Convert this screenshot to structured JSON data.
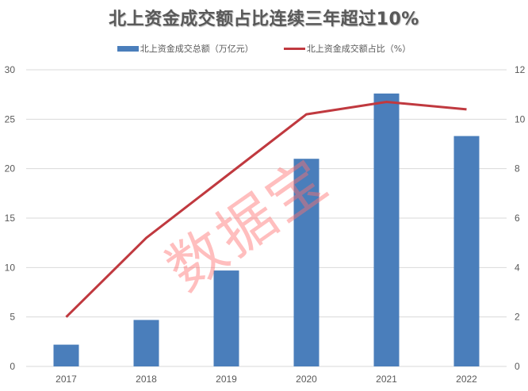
{
  "chart_data": {
    "type": "bar+line",
    "title": "北上资金成交额占比连续三年超过10%",
    "categories": [
      "2017",
      "2018",
      "2019",
      "2020",
      "2021",
      "2022"
    ],
    "series": [
      {
        "name": "北上资金成交总额（万亿元）",
        "type": "bar",
        "axis": "left",
        "color": "#4a7ebb",
        "values": [
          2.2,
          4.7,
          9.7,
          21.0,
          27.6,
          23.3
        ]
      },
      {
        "name": "北上资金成交额占比（%）",
        "type": "line",
        "axis": "right",
        "color": "#c0393f",
        "values": [
          2.0,
          5.2,
          7.7,
          10.2,
          10.7,
          10.4
        ]
      }
    ],
    "left_axis": {
      "ticks": [
        0,
        5,
        10,
        15,
        20,
        25,
        30
      ],
      "ylim": [
        0,
        30
      ]
    },
    "right_axis": {
      "ticks": [
        0,
        2,
        4,
        6,
        8,
        10,
        12
      ],
      "ylim": [
        0,
        12
      ]
    },
    "grid": true,
    "legend_position": "top",
    "xlabel": "",
    "ylabel": ""
  },
  "title": "北上资金成交额占比连续三年超过10%",
  "legend": {
    "bar_label": "北上资金成交总额（万亿元）",
    "line_label": "北上资金成交额占比（%）"
  },
  "watermark": "数据宝"
}
